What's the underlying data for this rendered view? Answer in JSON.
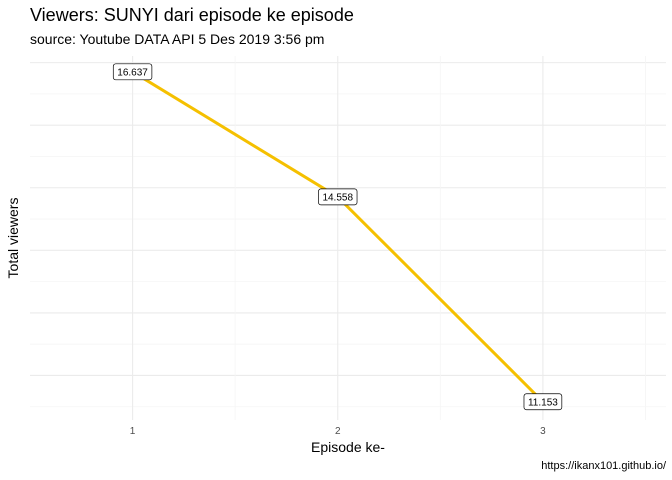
{
  "title": "Viewers: SUNYI dari episode ke episode",
  "subtitle": "source: Youtube DATA API 5 Des 2019 3:56 pm",
  "caption": "https://ikanx101.github.io/",
  "chart_data": {
    "type": "line",
    "title": "Viewers: SUNYI dari episode ke episode",
    "subtitle": "source: Youtube DATA API 5 Des 2019 3:56 pm",
    "xlabel": "Episode ke-",
    "ylabel": "Total viewers",
    "x": [
      1,
      2,
      3
    ],
    "x_tick_labels": [
      "1",
      "2",
      "3"
    ],
    "xlim": [
      0.5,
      3.6
    ],
    "ylim": [
      10.85,
      16.9
    ],
    "y_ticks_shown": false,
    "series": [
      {
        "values": [
          16.637,
          14.558,
          11.153
        ],
        "labels": [
          "16.637",
          "14.558",
          "11.153"
        ],
        "color": "#f5c000"
      }
    ],
    "grid": true,
    "legend": "none"
  }
}
